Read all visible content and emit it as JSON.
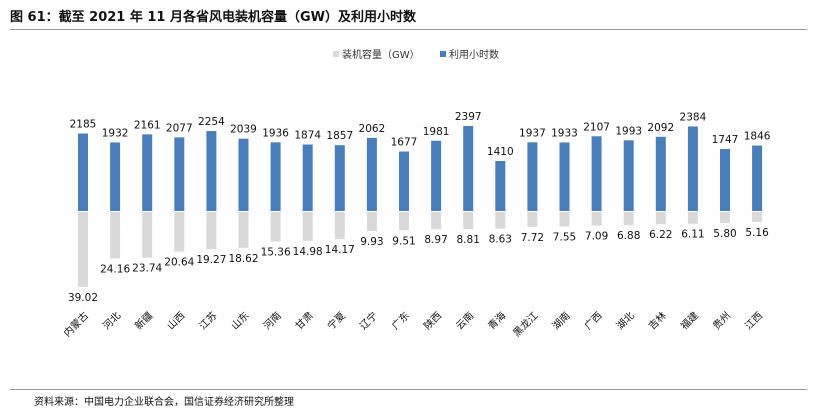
{
  "header": {
    "title": "图 61：截至 2021 年 11 月各省风电装机容量（GW）及利用小时数"
  },
  "footer": {
    "source": "资料来源：中国电力企业联合会，国信证券经济研究所整理"
  },
  "chart_data": {
    "type": "bar",
    "title": "",
    "legend_position": "top-center",
    "categories": [
      "内蒙古",
      "河北",
      "新疆",
      "山西",
      "江苏",
      "山东",
      "河南",
      "甘肃",
      "宁夏",
      "辽宁",
      "广东",
      "陕西",
      "云南",
      "青海",
      "黑龙江",
      "湖南",
      "广西",
      "湖北",
      "吉林",
      "福建",
      "贵州",
      "江西"
    ],
    "series": [
      {
        "name": "装机容量（GW）",
        "color": "#d9d9d9",
        "direction": "down",
        "values": [
          39.02,
          24.16,
          23.74,
          20.64,
          19.27,
          18.62,
          15.36,
          14.98,
          14.17,
          9.93,
          9.51,
          8.97,
          8.81,
          8.63,
          7.72,
          7.55,
          7.09,
          6.88,
          6.22,
          6.11,
          5.8,
          5.16
        ]
      },
      {
        "name": "利用小时数",
        "color": "#4a7ebb",
        "direction": "up",
        "values": [
          2185,
          1932,
          2161,
          2077,
          2254,
          2039,
          1936,
          1874,
          1857,
          2062,
          1677,
          1981,
          2397,
          1410,
          1937,
          1933,
          2107,
          1993,
          2092,
          2384,
          1747,
          1846
        ]
      }
    ]
  }
}
